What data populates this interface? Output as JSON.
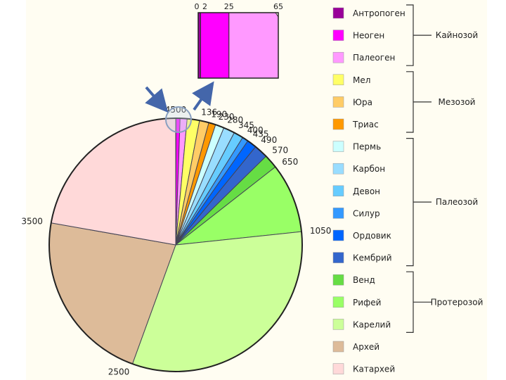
{
  "chart_data": {
    "type": "pie",
    "title": "",
    "unit": "",
    "boundaries": [
      4500,
      136,
      190,
      230,
      280,
      345,
      400,
      435,
      490,
      570,
      650,
      1050,
      2500,
      3500
    ],
    "slices": [
      {
        "name": "Антропоген",
        "from": 0,
        "to": 2,
        "color": "#990099"
      },
      {
        "name": "Неоген",
        "from": 2,
        "to": 25,
        "color": "#ff00ff"
      },
      {
        "name": "Палеоген",
        "from": 25,
        "to": 65,
        "color": "#ff99ff"
      },
      {
        "name": "Мел",
        "from": 65,
        "to": 136,
        "color": "#ffff66"
      },
      {
        "name": "Юра",
        "from": 136,
        "to": 190,
        "color": "#ffcc66"
      },
      {
        "name": "Триас",
        "from": 190,
        "to": 230,
        "color": "#ff9900"
      },
      {
        "name": "Пермь",
        "from": 230,
        "to": 280,
        "color": "#ccffff"
      },
      {
        "name": "Карбон",
        "from": 280,
        "to": 345,
        "color": "#99ddff"
      },
      {
        "name": "Девон",
        "from": 345,
        "to": 400,
        "color": "#66ccff"
      },
      {
        "name": "Силур",
        "from": 400,
        "to": 435,
        "color": "#3399ff"
      },
      {
        "name": "Ордовик",
        "from": 435,
        "to": 490,
        "color": "#0066ff"
      },
      {
        "name": "Кембрий",
        "from": 490,
        "to": 570,
        "color": "#3366cc"
      },
      {
        "name": "Венд",
        "from": 570,
        "to": 650,
        "color": "#66dd44"
      },
      {
        "name": "Рифей",
        "from": 650,
        "to": 1050,
        "color": "#99ff66"
      },
      {
        "name": "Карелий",
        "from": 1050,
        "to": 2500,
        "color": "#ccff99"
      },
      {
        "name": "Архей",
        "from": 2500,
        "to": 3500,
        "color": "#ddbb99"
      },
      {
        "name": "Катархей",
        "from": 3500,
        "to": 4500,
        "color": "#ffd9d9"
      }
    ],
    "total": 4500,
    "inset": {
      "tick_labels": [
        "0",
        "2",
        "25",
        "65"
      ],
      "slices": [
        {
          "name": "Антропоген",
          "from": 0,
          "to": 2,
          "color": "#990099"
        },
        {
          "name": "Неоген",
          "from": 2,
          "to": 25,
          "color": "#ff00ff"
        },
        {
          "name": "Палеоген",
          "from": 25,
          "to": 65,
          "color": "#ff99ff"
        }
      ]
    },
    "legend_position": "right",
    "groups": [
      {
        "label": "Кайнозой",
        "first": 0,
        "last": 2
      },
      {
        "label": "Мезозой",
        "first": 3,
        "last": 5
      },
      {
        "label": "Палеозой",
        "first": 6,
        "last": 11
      },
      {
        "label": "Протерозой",
        "first": 12,
        "last": 14
      }
    ]
  }
}
